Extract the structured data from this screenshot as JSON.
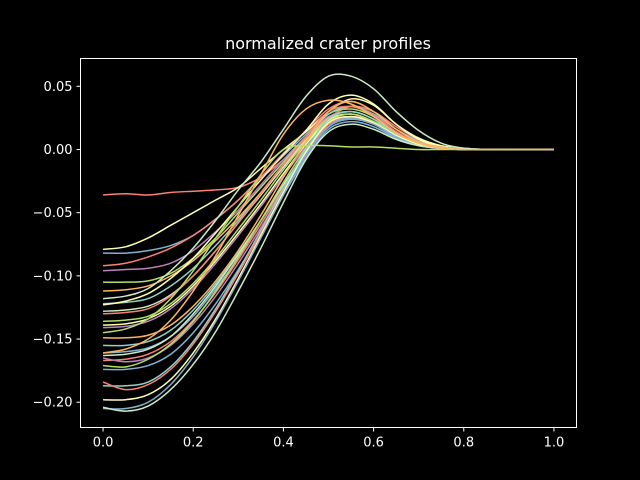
{
  "chart_data": {
    "type": "line",
    "title": "normalized crater profiles",
    "xlabel": "",
    "ylabel": "",
    "xlim": [
      -0.05,
      1.05
    ],
    "ylim": [
      -0.22,
      0.072
    ],
    "xticks": [
      0.0,
      0.2,
      0.4,
      0.6,
      0.8,
      1.0
    ],
    "xtick_labels": [
      "0.0",
      "0.2",
      "0.4",
      "0.6",
      "0.8",
      "1.0"
    ],
    "yticks": [
      -0.2,
      -0.15,
      -0.1,
      -0.05,
      0.0,
      0.05
    ],
    "ytick_labels": [
      "−0.20",
      "−0.15",
      "−0.10",
      "−0.05",
      "0.00",
      "0.05"
    ],
    "grid": false,
    "legend": "none",
    "x": [
      0.0,
      0.05,
      0.1,
      0.15,
      0.2,
      0.25,
      0.3,
      0.35,
      0.4,
      0.45,
      0.5,
      0.55,
      0.6,
      0.65,
      0.7,
      0.75,
      0.8,
      0.85,
      0.9,
      1.0
    ],
    "series": [
      {
        "color": "#fa8174",
        "values": [
          -0.036,
          -0.035,
          -0.036,
          -0.034,
          -0.033,
          -0.032,
          -0.03,
          -0.022,
          -0.008,
          0.008,
          0.025,
          0.034,
          0.03,
          0.018,
          0.008,
          0.003,
          0.001,
          0.0,
          0.0,
          0.0
        ]
      },
      {
        "color": "#feffb3",
        "values": [
          -0.079,
          -0.077,
          -0.07,
          -0.06,
          -0.05,
          -0.04,
          -0.03,
          -0.015,
          0.0,
          0.014,
          0.03,
          0.04,
          0.035,
          0.02,
          0.009,
          0.003,
          0.001,
          0.0,
          0.0,
          0.0
        ]
      },
      {
        "color": "#81b1d2",
        "values": [
          -0.082,
          -0.082,
          -0.08,
          -0.076,
          -0.068,
          -0.055,
          -0.04,
          -0.022,
          -0.005,
          0.012,
          0.028,
          0.034,
          0.028,
          0.016,
          0.007,
          0.002,
          0.001,
          0.0,
          0.0,
          0.0
        ]
      },
      {
        "color": "#fa8174",
        "values": [
          -0.092,
          -0.09,
          -0.085,
          -0.078,
          -0.068,
          -0.055,
          -0.04,
          -0.022,
          -0.003,
          0.015,
          0.032,
          0.038,
          0.03,
          0.016,
          0.006,
          0.002,
          0.0,
          0.0,
          0.0,
          0.0
        ]
      },
      {
        "color": "#bc82bd",
        "values": [
          -0.096,
          -0.095,
          -0.094,
          -0.09,
          -0.08,
          -0.065,
          -0.048,
          -0.028,
          -0.008,
          0.01,
          0.026,
          0.03,
          0.024,
          0.012,
          0.005,
          0.001,
          0.0,
          0.0,
          0.0,
          0.0
        ]
      },
      {
        "color": "#b3de69",
        "values": [
          -0.105,
          -0.105,
          -0.104,
          -0.098,
          -0.086,
          -0.07,
          -0.05,
          -0.03,
          -0.01,
          0.01,
          0.028,
          0.032,
          0.026,
          0.013,
          0.005,
          0.001,
          0.0,
          0.0,
          0.0,
          0.0
        ]
      },
      {
        "color": "#fdb462",
        "values": [
          -0.112,
          -0.111,
          -0.108,
          -0.1,
          -0.088,
          -0.072,
          -0.054,
          -0.034,
          -0.012,
          0.008,
          0.025,
          0.03,
          0.024,
          0.012,
          0.004,
          0.001,
          0.0,
          0.0,
          0.0,
          0.0
        ]
      },
      {
        "color": "#8dd3c7",
        "values": [
          -0.122,
          -0.121,
          -0.118,
          -0.108,
          -0.094,
          -0.076,
          -0.056,
          -0.035,
          -0.012,
          0.01,
          0.028,
          0.034,
          0.027,
          0.014,
          0.005,
          0.001,
          0.0,
          0.0,
          0.0,
          0.0
        ]
      },
      {
        "color": "#feffb3",
        "values": [
          -0.123,
          -0.12,
          -0.114,
          -0.102,
          -0.086,
          -0.066,
          -0.045,
          -0.024,
          -0.004,
          0.015,
          0.036,
          0.043,
          0.036,
          0.02,
          0.008,
          0.002,
          0.0,
          0.0,
          0.0,
          0.0
        ]
      },
      {
        "color": "#ccebc4",
        "values": [
          -0.128,
          -0.127,
          -0.124,
          -0.115,
          -0.1,
          -0.08,
          -0.058,
          -0.036,
          -0.014,
          0.007,
          0.022,
          0.026,
          0.021,
          0.011,
          0.004,
          0.001,
          0.0,
          0.0,
          0.0,
          0.0
        ]
      },
      {
        "color": "#fa8174",
        "values": [
          -0.13,
          -0.129,
          -0.126,
          -0.116,
          -0.1,
          -0.08,
          -0.058,
          -0.035,
          -0.012,
          0.01,
          0.03,
          0.034,
          0.027,
          0.014,
          0.005,
          0.001,
          0.0,
          0.0,
          0.0,
          0.0
        ]
      },
      {
        "color": "#b3de69",
        "values": [
          -0.136,
          -0.135,
          -0.132,
          -0.122,
          -0.106,
          -0.086,
          -0.063,
          -0.04,
          -0.016,
          0.006,
          0.024,
          0.028,
          0.022,
          0.011,
          0.004,
          0.001,
          0.0,
          0.0,
          0.0,
          0.0
        ]
      },
      {
        "color": "#feffb3",
        "values": [
          -0.139,
          -0.138,
          -0.134,
          -0.124,
          -0.108,
          -0.088,
          -0.066,
          -0.043,
          -0.019,
          0.004,
          0.023,
          0.028,
          0.022,
          0.011,
          0.004,
          0.001,
          0.0,
          0.0,
          0.0,
          0.0
        ]
      },
      {
        "color": "#bc82bd",
        "values": [
          -0.141,
          -0.14,
          -0.136,
          -0.126,
          -0.11,
          -0.09,
          -0.068,
          -0.045,
          -0.021,
          0.002,
          0.02,
          0.025,
          0.02,
          0.01,
          0.004,
          0.001,
          0.0,
          0.0,
          0.0,
          0.0
        ]
      },
      {
        "color": "#fdb462",
        "values": [
          -0.149,
          -0.149,
          -0.147,
          -0.139,
          -0.124,
          -0.104,
          -0.08,
          -0.052,
          -0.022,
          0.006,
          0.03,
          0.038,
          0.03,
          0.016,
          0.006,
          0.002,
          0.0,
          0.0,
          0.0,
          0.0
        ]
      },
      {
        "color": "#8dd3c7",
        "values": [
          -0.155,
          -0.155,
          -0.152,
          -0.143,
          -0.127,
          -0.106,
          -0.082,
          -0.056,
          -0.028,
          -0.002,
          0.02,
          0.026,
          0.022,
          0.012,
          0.004,
          0.001,
          0.0,
          0.0,
          0.0,
          0.0
        ]
      },
      {
        "color": "#81b1d2",
        "values": [
          -0.161,
          -0.16,
          -0.157,
          -0.148,
          -0.132,
          -0.11,
          -0.086,
          -0.059,
          -0.031,
          -0.004,
          0.018,
          0.025,
          0.021,
          0.011,
          0.004,
          0.001,
          0.0,
          0.0,
          0.0,
          0.0
        ]
      },
      {
        "color": "#ccebc4",
        "values": [
          -0.163,
          -0.162,
          -0.158,
          -0.148,
          -0.13,
          -0.108,
          -0.083,
          -0.056,
          -0.028,
          -0.002,
          0.02,
          0.026,
          0.021,
          0.011,
          0.004,
          0.001,
          0.0,
          0.0,
          0.0,
          0.0
        ]
      },
      {
        "color": "#fa8174",
        "values": [
          -0.167,
          -0.166,
          -0.162,
          -0.152,
          -0.135,
          -0.113,
          -0.087,
          -0.059,
          -0.03,
          -0.003,
          0.02,
          0.026,
          0.021,
          0.011,
          0.004,
          0.001,
          0.0,
          0.0,
          0.0,
          0.0
        ]
      },
      {
        "color": "#bc82bd",
        "values": [
          -0.165,
          -0.168,
          -0.165,
          -0.155,
          -0.138,
          -0.116,
          -0.09,
          -0.062,
          -0.033,
          -0.005,
          0.018,
          0.024,
          0.02,
          0.01,
          0.003,
          0.001,
          0.0,
          0.0,
          0.0,
          0.0
        ]
      },
      {
        "color": "#81b1d2",
        "values": [
          -0.174,
          -0.174,
          -0.171,
          -0.162,
          -0.145,
          -0.122,
          -0.095,
          -0.066,
          -0.036,
          -0.007,
          0.016,
          0.022,
          0.018,
          0.009,
          0.003,
          0.001,
          0.0,
          0.0,
          0.0,
          0.0
        ]
      },
      {
        "color": "#b3de69",
        "values": [
          -0.171,
          -0.172,
          -0.166,
          -0.154,
          -0.136,
          -0.112,
          -0.085,
          -0.056,
          -0.026,
          0.001,
          0.022,
          0.028,
          0.022,
          0.012,
          0.004,
          0.001,
          0.0,
          0.0,
          0.0,
          0.0
        ]
      },
      {
        "color": "#8dd3c7",
        "values": [
          -0.187,
          -0.187,
          -0.184,
          -0.172,
          -0.152,
          -0.126,
          -0.096,
          -0.064,
          -0.031,
          0.0,
          0.024,
          0.03,
          0.024,
          0.012,
          0.004,
          0.001,
          0.0,
          0.0,
          0.0,
          0.0
        ]
      },
      {
        "color": "#fa8174",
        "values": [
          -0.184,
          -0.19,
          -0.186,
          -0.174,
          -0.154,
          -0.128,
          -0.098,
          -0.066,
          -0.034,
          -0.004,
          0.02,
          0.026,
          0.021,
          0.011,
          0.004,
          0.001,
          0.0,
          0.0,
          0.0,
          0.0
        ]
      },
      {
        "color": "#feffb3",
        "values": [
          -0.198,
          -0.198,
          -0.194,
          -0.182,
          -0.161,
          -0.134,
          -0.102,
          -0.068,
          -0.034,
          -0.002,
          0.021,
          0.026,
          0.021,
          0.011,
          0.004,
          0.001,
          0.0,
          0.0,
          0.0,
          0.0
        ]
      },
      {
        "color": "#81b1d2",
        "values": [
          -0.205,
          -0.205,
          -0.2,
          -0.186,
          -0.164,
          -0.136,
          -0.104,
          -0.07,
          -0.036,
          -0.004,
          0.018,
          0.024,
          0.02,
          0.01,
          0.003,
          0.001,
          0.0,
          0.0,
          0.0,
          0.0
        ]
      },
      {
        "color": "#ccebc4",
        "values": [
          -0.204,
          -0.207,
          -0.203,
          -0.19,
          -0.17,
          -0.144,
          -0.112,
          -0.078,
          -0.042,
          -0.008,
          0.014,
          0.02,
          0.016,
          0.008,
          0.003,
          0.001,
          0.0,
          0.0,
          0.0,
          0.0
        ]
      },
      {
        "color": "#b3de69",
        "values": [
          -0.145,
          -0.142,
          -0.134,
          -0.118,
          -0.096,
          -0.07,
          -0.045,
          -0.02,
          0.0,
          0.003,
          0.003,
          0.002,
          0.002,
          0.001,
          0.0,
          0.0,
          0.0,
          0.0,
          0.0,
          0.0
        ]
      },
      {
        "color": "#ccebc4",
        "values": [
          -0.118,
          -0.116,
          -0.11,
          -0.096,
          -0.078,
          -0.056,
          -0.032,
          -0.01,
          0.016,
          0.042,
          0.058,
          0.058,
          0.048,
          0.03,
          0.015,
          0.005,
          0.001,
          0.0,
          0.0,
          0.0
        ]
      },
      {
        "color": "#fdb462",
        "values": [
          -0.161,
          -0.158,
          -0.15,
          -0.135,
          -0.112,
          -0.084,
          -0.052,
          -0.02,
          0.012,
          0.032,
          0.039,
          0.036,
          0.026,
          0.013,
          0.005,
          0.001,
          0.0,
          0.0,
          0.0,
          0.0
        ]
      }
    ]
  }
}
